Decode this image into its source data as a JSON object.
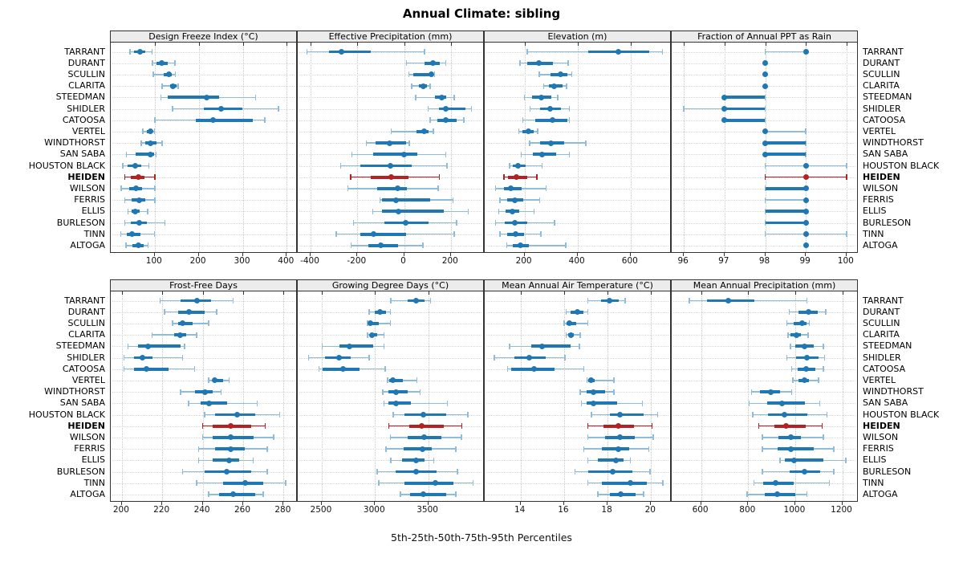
{
  "title": "Annual Climate: sibling",
  "caption": "5th-25th-50th-75th-95th Percentiles",
  "highlight_site": "HEIDEN",
  "colors": {
    "series_blue": "#1f77b4",
    "series_blue_whisker": "#8fbcdb",
    "highlight_red": "#b22222",
    "highlight_red_whisker": "#b22222",
    "strip_bg": "#ececec",
    "panel_border": "#333333",
    "grid": "#c9c9c9"
  },
  "chart_data": {
    "type": "scatter",
    "subtype": "trellis-percentile-dotplot",
    "layout": "2 rows x 4 columns",
    "percentiles": [
      5,
      25,
      50,
      75,
      95
    ],
    "rows": [
      "TARRANT",
      "DURANT",
      "SCULLIN",
      "CLARITA",
      "STEEDMAN",
      "SHIDLER",
      "CATOOSA",
      "VERTEL",
      "WINDTHORST",
      "SAN SABA",
      "HOUSTON BLACK",
      "HEIDEN",
      "WILSON",
      "FERRIS",
      "ELLIS",
      "BURLESON",
      "TINN",
      "ALTOGA"
    ],
    "panels": [
      {
        "title": "Design Freeze Index (°C)",
        "ticks": [
          100,
          200,
          300,
          400
        ],
        "domain": [
          0,
          425
        ],
        "values": [
          [
            44,
            52,
            67,
            79,
            94
          ],
          [
            95,
            104,
            115,
            129,
            146
          ],
          [
            97,
            121,
            132,
            139,
            147
          ],
          [
            117,
            135,
            142,
            150,
            153
          ],
          [
            114,
            130,
            218,
            247,
            329
          ],
          [
            140,
            211,
            250,
            300,
            381
          ],
          [
            100,
            193,
            233,
            323,
            350
          ],
          [
            73,
            82,
            90,
            95,
            99
          ],
          [
            69,
            78,
            91,
            104,
            117
          ],
          [
            36,
            56,
            91,
            98,
            103
          ],
          [
            27,
            39,
            55,
            70,
            87
          ],
          [
            32,
            45,
            62,
            76,
            100
          ],
          [
            24,
            42,
            58,
            71,
            100
          ],
          [
            32,
            48,
            64,
            79,
            100
          ],
          [
            39,
            47,
            55,
            65,
            84
          ],
          [
            32,
            46,
            64,
            82,
            123
          ],
          [
            23,
            36,
            49,
            67,
            99
          ],
          [
            35,
            49,
            62,
            75,
            85
          ]
        ]
      },
      {
        "title": "Effective Precipitation (mm)",
        "ticks": [
          -400,
          -200,
          0,
          200
        ],
        "domain": [
          -455,
          345
        ],
        "values": [
          [
            -415,
            -320,
            -269,
            -143,
            88
          ],
          [
            11,
            88,
            124,
            152,
            179
          ],
          [
            21,
            40,
            118,
            124,
            131
          ],
          [
            32,
            63,
            82,
            97,
            111
          ],
          [
            49,
            131,
            160,
            181,
            215
          ],
          [
            103,
            149,
            177,
            263,
            288
          ],
          [
            112,
            143,
            179,
            225,
            255
          ],
          [
            -55,
            54,
            86,
            105,
            126
          ],
          [
            -162,
            -122,
            -63,
            8,
            23
          ],
          [
            -223,
            -134,
            0,
            57,
            179
          ],
          [
            -271,
            -188,
            -57,
            34,
            183
          ],
          [
            -229,
            -143,
            -55,
            20,
            151
          ],
          [
            -240,
            -114,
            -29,
            11,
            146
          ],
          [
            -103,
            -95,
            -36,
            111,
            209
          ],
          [
            -134,
            -95,
            -23,
            169,
            274
          ],
          [
            -217,
            -86,
            6,
            103,
            225
          ],
          [
            -291,
            -188,
            -131,
            9,
            214
          ],
          [
            -226,
            -152,
            -100,
            -25,
            80
          ]
        ]
      },
      {
        "title": "Elevation (m)",
        "ticks": [
          200,
          400,
          600
        ],
        "domain": [
          50,
          755
        ],
        "values": [
          [
            210,
            440,
            554,
            669,
            720
          ],
          [
            183,
            210,
            254,
            308,
            364
          ],
          [
            255,
            299,
            335,
            361,
            378
          ],
          [
            272,
            292,
            313,
            344,
            359
          ],
          [
            200,
            229,
            264,
            301,
            326
          ],
          [
            221,
            259,
            295,
            338,
            369
          ],
          [
            193,
            241,
            306,
            361,
            369
          ],
          [
            178,
            193,
            215,
            234,
            249
          ],
          [
            219,
            259,
            299,
            349,
            431
          ],
          [
            187,
            231,
            267,
            320,
            369
          ],
          [
            144,
            156,
            176,
            204,
            267
          ],
          [
            122,
            138,
            168,
            210,
            246
          ],
          [
            91,
            122,
            148,
            189,
            281
          ],
          [
            108,
            135,
            164,
            195,
            258
          ],
          [
            103,
            128,
            153,
            179,
            236
          ],
          [
            91,
            125,
            163,
            210,
            313
          ],
          [
            108,
            135,
            166,
            197,
            262
          ],
          [
            133,
            156,
            185,
            215,
            356
          ]
        ]
      },
      {
        "title": "Fraction of Annual PPT as Rain",
        "ticks": [
          96,
          97,
          98,
          99,
          100
        ],
        "domain": [
          95.7,
          100.3
        ],
        "values": [
          [
            98,
            99,
            99,
            99,
            99
          ],
          [
            98,
            98,
            98,
            98,
            98
          ],
          [
            98,
            98,
            98,
            98,
            98
          ],
          [
            98,
            98,
            98,
            98,
            98
          ],
          [
            97,
            97,
            97,
            98,
            98
          ],
          [
            96,
            97,
            97,
            98,
            98
          ],
          [
            97,
            97,
            97,
            98,
            98
          ],
          [
            98,
            98,
            98,
            98,
            99
          ],
          [
            98,
            98,
            98,
            99,
            99
          ],
          [
            98,
            98,
            98,
            99,
            99
          ],
          [
            98,
            99,
            99,
            99,
            100
          ],
          [
            98,
            99,
            99,
            99,
            100
          ],
          [
            98,
            98,
            99,
            99,
            99
          ],
          [
            98,
            99,
            99,
            99,
            99
          ],
          [
            98,
            98,
            99,
            99,
            99
          ],
          [
            98,
            98,
            99,
            99,
            99
          ],
          [
            98,
            99,
            99,
            99,
            100
          ],
          [
            99,
            99,
            99,
            99,
            99
          ]
        ]
      },
      {
        "title": "Frost-Free Days",
        "ticks": [
          200,
          220,
          240,
          260,
          280
        ],
        "domain": [
          194.5,
          287
        ],
        "values": [
          [
            219,
            229,
            237,
            244,
            255
          ],
          [
            221,
            228,
            233,
            241,
            247
          ],
          [
            225,
            228,
            230,
            235,
            243
          ],
          [
            215,
            226,
            229,
            232,
            237
          ],
          [
            203,
            208,
            213,
            229,
            231
          ],
          [
            201,
            206,
            210,
            215,
            230
          ],
          [
            201,
            206,
            212,
            223,
            236
          ],
          [
            243,
            245,
            246,
            250,
            253
          ],
          [
            229,
            236,
            241,
            245,
            249
          ],
          [
            233,
            239,
            243,
            252,
            267
          ],
          [
            241,
            246,
            257,
            266,
            278
          ],
          [
            240,
            245,
            254,
            264,
            271
          ],
          [
            240,
            245,
            254,
            265,
            275
          ],
          [
            238,
            246,
            254,
            261,
            272
          ],
          [
            238,
            245,
            253,
            258,
            265
          ],
          [
            230,
            241,
            252,
            264,
            272
          ],
          [
            237,
            250,
            261,
            270,
            281
          ],
          [
            243,
            248,
            255,
            266,
            270
          ]
        ]
      },
      {
        "title": "Growing Degree Days (°C)",
        "ticks": [
          2500,
          3000,
          3500
        ],
        "domain": [
          2275,
          4030
        ],
        "values": [
          [
            3150,
            3305,
            3385,
            3465,
            3520
          ],
          [
            2945,
            3000,
            3050,
            3105,
            3145
          ],
          [
            2930,
            2945,
            2960,
            3035,
            3145
          ],
          [
            2930,
            2950,
            2975,
            3020,
            3085
          ],
          [
            2505,
            2670,
            2760,
            2985,
            3085
          ],
          [
            2375,
            2530,
            2665,
            2775,
            2945
          ],
          [
            2475,
            2505,
            2700,
            2855,
            3095
          ],
          [
            3120,
            3135,
            3170,
            3260,
            3395
          ],
          [
            3075,
            3125,
            3200,
            3305,
            3425
          ],
          [
            3085,
            3125,
            3200,
            3340,
            3680
          ],
          [
            3170,
            3275,
            3450,
            3665,
            3870
          ],
          [
            3130,
            3320,
            3440,
            3650,
            3815
          ],
          [
            3145,
            3310,
            3460,
            3625,
            3810
          ],
          [
            3105,
            3270,
            3445,
            3535,
            3760
          ],
          [
            3150,
            3255,
            3385,
            3465,
            3550
          ],
          [
            3020,
            3190,
            3385,
            3575,
            3775
          ],
          [
            3035,
            3280,
            3570,
            3740,
            3920
          ],
          [
            3240,
            3330,
            3450,
            3670,
            3760
          ]
        ]
      },
      {
        "title": "Mean Annual Air Temperature (°C)",
        "ticks": [
          14,
          16,
          18,
          20
        ],
        "domain": [
          12.35,
          20.95
        ],
        "values": [
          [
            17.1,
            17.7,
            18.1,
            18.5,
            18.8
          ],
          [
            16.1,
            16.3,
            16.6,
            16.9,
            17.1
          ],
          [
            16.0,
            16.1,
            16.25,
            16.55,
            17.1
          ],
          [
            16.1,
            16.2,
            16.3,
            16.45,
            16.75
          ],
          [
            13.5,
            14.5,
            15.0,
            16.3,
            16.7
          ],
          [
            12.8,
            13.7,
            14.4,
            15.15,
            16.05
          ],
          [
            13.4,
            13.55,
            14.6,
            15.55,
            16.9
          ],
          [
            17.05,
            17.1,
            17.25,
            17.4,
            18.3
          ],
          [
            16.75,
            17.05,
            17.35,
            17.9,
            18.3
          ],
          [
            16.8,
            17.05,
            17.35,
            18.45,
            19.6
          ],
          [
            17.25,
            18.1,
            18.55,
            19.65,
            20.3
          ],
          [
            17.1,
            17.8,
            18.5,
            19.2,
            20.05
          ],
          [
            17.1,
            17.9,
            18.55,
            19.25,
            20.1
          ],
          [
            16.9,
            17.75,
            18.5,
            19.0,
            19.9
          ],
          [
            17.1,
            17.55,
            18.4,
            18.75,
            19.05
          ],
          [
            16.5,
            17.1,
            18.25,
            19.15,
            19.95
          ],
          [
            17.1,
            17.75,
            19.05,
            19.8,
            20.55
          ],
          [
            17.55,
            18.1,
            18.6,
            19.3,
            19.65
          ]
        ]
      },
      {
        "title": "Mean Annual Precipitation (mm)",
        "ticks": [
          600,
          800,
          1000,
          1200
        ],
        "domain": [
          475,
          1270
        ],
        "values": [
          [
            550,
            625,
            715,
            825,
            1050
          ],
          [
            975,
            1015,
            1055,
            1095,
            1130
          ],
          [
            965,
            995,
            1030,
            1050,
            1060
          ],
          [
            970,
            980,
            1005,
            1025,
            1055
          ],
          [
            980,
            1000,
            1040,
            1080,
            1120
          ],
          [
            965,
            1005,
            1050,
            1100,
            1125
          ],
          [
            985,
            1010,
            1045,
            1085,
            1120
          ],
          [
            990,
            1013,
            1040,
            1060,
            1100
          ],
          [
            815,
            850,
            895,
            935,
            985
          ],
          [
            805,
            880,
            945,
            1040,
            1105
          ],
          [
            820,
            885,
            955,
            1050,
            1135
          ],
          [
            845,
            910,
            960,
            1045,
            1115
          ],
          [
            860,
            930,
            980,
            1025,
            1120
          ],
          [
            860,
            925,
            980,
            1080,
            1165
          ],
          [
            935,
            955,
            995,
            1120,
            1215
          ],
          [
            860,
            975,
            1040,
            1105,
            1165
          ],
          [
            825,
            865,
            915,
            995,
            1145
          ],
          [
            795,
            870,
            925,
            1000,
            1050
          ]
        ]
      }
    ]
  }
}
